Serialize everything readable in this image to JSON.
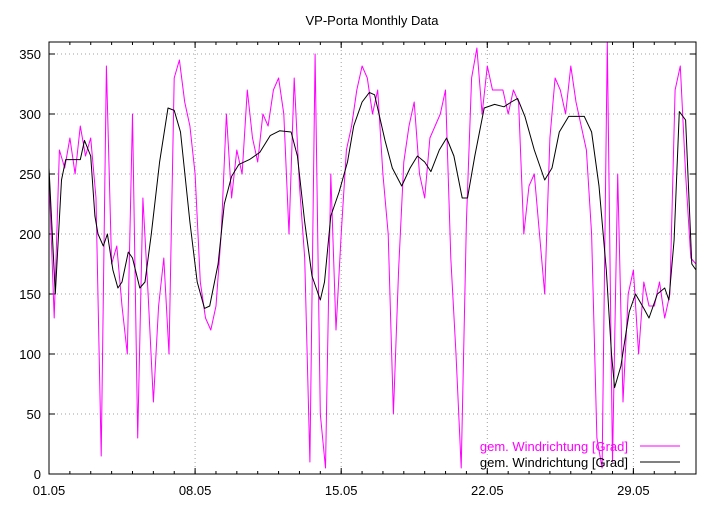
{
  "chart_data": {
    "type": "line",
    "title": "VP-Porta Monthly Data",
    "xlabel": "",
    "ylabel": "",
    "xlim": [
      0,
      31
    ],
    "ylim": [
      0,
      360
    ],
    "x_unit": "days since 01.05",
    "grid": true,
    "legend_position": "bottom-right",
    "yticks": [
      0,
      50,
      100,
      150,
      200,
      250,
      300,
      350
    ],
    "xticks": [
      {
        "day": 0,
        "label": "01.05"
      },
      {
        "day": 7,
        "label": "08.05"
      },
      {
        "day": 14,
        "label": "15.05"
      },
      {
        "day": 21,
        "label": "22.05"
      },
      {
        "day": 28,
        "label": "29.05"
      }
    ],
    "series": [
      {
        "name": "gem. Windrichtung [Grad]",
        "color": "#ff00ff",
        "x_start": 0,
        "x_step": 0.25,
        "values": [
          250,
          130,
          270,
          255,
          280,
          250,
          290,
          265,
          280,
          230,
          15,
          340,
          175,
          190,
          140,
          100,
          300,
          30,
          230,
          150,
          60,
          140,
          180,
          100,
          330,
          345,
          310,
          290,
          250,
          160,
          130,
          120,
          140,
          200,
          300,
          230,
          270,
          250,
          320,
          280,
          260,
          300,
          290,
          320,
          330,
          300,
          200,
          330,
          240,
          180,
          10,
          350,
          50,
          5,
          250,
          120,
          200,
          270,
          290,
          320,
          340,
          330,
          300,
          320,
          250,
          200,
          50,
          170,
          260,
          290,
          310,
          250,
          230,
          280,
          290,
          300,
          320,
          180,
          100,
          5,
          210,
          330,
          355,
          300,
          340,
          320,
          320,
          320,
          300,
          320,
          310,
          200,
          240,
          250,
          200,
          150,
          280,
          330,
          320,
          300,
          340,
          310,
          290,
          270,
          200,
          30,
          5,
          360,
          10,
          250,
          60,
          150,
          170,
          100,
          160,
          140,
          140,
          160,
          130,
          150,
          320,
          340,
          250,
          180,
          175
        ]
      },
      {
        "name": "gem. Windrichtung [Grad]",
        "color": "#000000",
        "points": [
          [
            0,
            255
          ],
          [
            0.3,
            150
          ],
          [
            0.6,
            245
          ],
          [
            0.8,
            262
          ],
          [
            1.5,
            262
          ],
          [
            1.7,
            278
          ],
          [
            2.0,
            265
          ],
          [
            2.2,
            215
          ],
          [
            2.35,
            200
          ],
          [
            2.6,
            190
          ],
          [
            2.8,
            200
          ],
          [
            3.06,
            170
          ],
          [
            3.3,
            155
          ],
          [
            3.5,
            160
          ],
          [
            3.8,
            185
          ],
          [
            4.0,
            180
          ],
          [
            4.35,
            155
          ],
          [
            4.6,
            160
          ],
          [
            4.9,
            200
          ],
          [
            5.3,
            260
          ],
          [
            5.7,
            305
          ],
          [
            6.0,
            303
          ],
          [
            6.3,
            285
          ],
          [
            6.75,
            210
          ],
          [
            7.1,
            160
          ],
          [
            7.45,
            138
          ],
          [
            7.7,
            140
          ],
          [
            8.1,
            175
          ],
          [
            8.4,
            225
          ],
          [
            8.75,
            248
          ],
          [
            9.1,
            258
          ],
          [
            9.6,
            262
          ],
          [
            10.1,
            268
          ],
          [
            10.6,
            282
          ],
          [
            11.05,
            286
          ],
          [
            11.6,
            285
          ],
          [
            11.9,
            265
          ],
          [
            12.25,
            210
          ],
          [
            12.6,
            165
          ],
          [
            13.0,
            145
          ],
          [
            13.2,
            160
          ],
          [
            13.5,
            215
          ],
          [
            13.9,
            235
          ],
          [
            14.3,
            260
          ],
          [
            14.6,
            290
          ],
          [
            15.0,
            310
          ],
          [
            15.35,
            318
          ],
          [
            15.6,
            316
          ],
          [
            16.1,
            278
          ],
          [
            16.45,
            255
          ],
          [
            16.9,
            240
          ],
          [
            17.3,
            255
          ],
          [
            17.65,
            265
          ],
          [
            18.0,
            260
          ],
          [
            18.3,
            252
          ],
          [
            18.7,
            270
          ],
          [
            19.05,
            280
          ],
          [
            19.4,
            265
          ],
          [
            19.8,
            230
          ],
          [
            20.05,
            230
          ],
          [
            20.4,
            265
          ],
          [
            20.85,
            305
          ],
          [
            21.35,
            308
          ],
          [
            21.8,
            306
          ],
          [
            22.15,
            310
          ],
          [
            22.45,
            313
          ],
          [
            22.8,
            298
          ],
          [
            23.25,
            270
          ],
          [
            23.75,
            245
          ],
          [
            24.1,
            255
          ],
          [
            24.45,
            285
          ],
          [
            24.9,
            298
          ],
          [
            25.65,
            298
          ],
          [
            26.0,
            285
          ],
          [
            26.35,
            240
          ],
          [
            26.7,
            170
          ],
          [
            26.95,
            100
          ],
          [
            27.1,
            72
          ],
          [
            27.4,
            90
          ],
          [
            27.8,
            135
          ],
          [
            28.1,
            150
          ],
          [
            28.5,
            138
          ],
          [
            28.75,
            130
          ],
          [
            29.15,
            150
          ],
          [
            29.5,
            155
          ],
          [
            29.7,
            145
          ],
          [
            29.95,
            195
          ],
          [
            30.2,
            302
          ],
          [
            30.5,
            295
          ],
          [
            30.8,
            175
          ],
          [
            31.0,
            170
          ]
        ]
      }
    ]
  }
}
